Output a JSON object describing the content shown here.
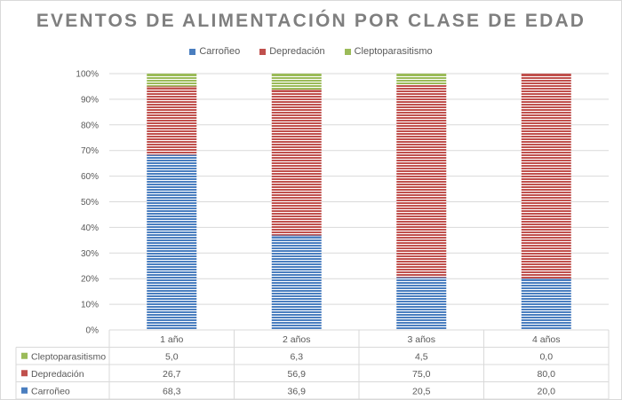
{
  "chart_data": {
    "type": "bar",
    "stacked": true,
    "percent_stacked": true,
    "title": "EVENTOS DE ALIMENTACIÓN POR CLASE DE EDAD",
    "categories": [
      "1 año",
      "2 años",
      "3 años",
      "4 años"
    ],
    "series": [
      {
        "name": "Carroñeo",
        "values": [
          68.3,
          36.9,
          20.5,
          20.0
        ],
        "color": "#4a7ebf",
        "stripe": "#ffffff"
      },
      {
        "name": "Depredación",
        "values": [
          26.7,
          56.9,
          75.0,
          80.0
        ],
        "color": "#c0504d",
        "stripe": "#ffffff"
      },
      {
        "name": "Cleptoparasitismo",
        "values": [
          5.0,
          6.3,
          4.5,
          0.0
        ],
        "color": "#9bbb59",
        "stripe": "#ffffff"
      }
    ],
    "table_values": {
      "Cleptoparasitismo": [
        "5,0",
        "6,3",
        "4,5",
        "0,0"
      ],
      "Depredación": [
        "26,7",
        "56,9",
        "75,0",
        "80,0"
      ],
      "Carroñeo": [
        "68,3",
        "36,9",
        "20,5",
        "20,0"
      ]
    },
    "table_row_order": [
      "Cleptoparasitismo",
      "Depredación",
      "Carroñeo"
    ],
    "ylim": [
      0,
      100
    ],
    "yticks": [
      0,
      10,
      20,
      30,
      40,
      50,
      60,
      70,
      80,
      90,
      100
    ],
    "ytick_labels": [
      "0%",
      "10%",
      "20%",
      "30%",
      "40%",
      "50%",
      "60%",
      "70%",
      "80%",
      "90%",
      "100%"
    ],
    "legend_position": "top",
    "grid": true,
    "grid_color": "#d9d9d9"
  }
}
